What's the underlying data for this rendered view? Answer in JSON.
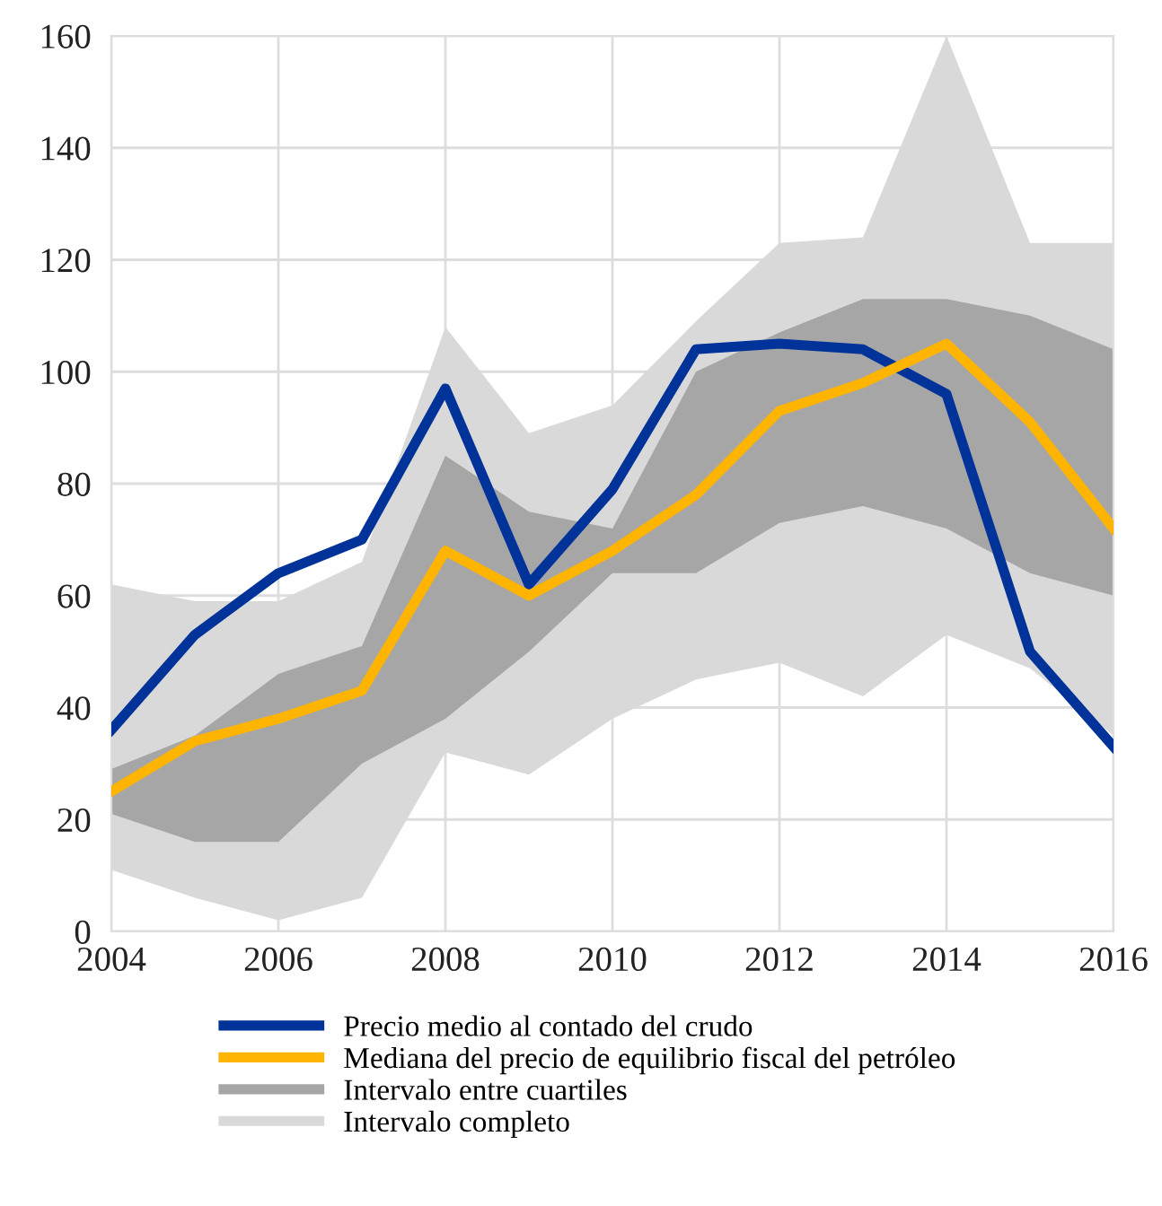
{
  "chart_data": {
    "type": "line",
    "x": [
      2004,
      2005,
      2006,
      2007,
      2008,
      2009,
      2010,
      2011,
      2012,
      2013,
      2014,
      2015,
      2016
    ],
    "series": [
      {
        "name": "Precio medio al contado del crudo",
        "color": "#003399",
        "values": [
          36,
          53,
          64,
          70,
          97,
          62,
          79,
          104,
          105,
          104,
          96,
          50,
          33
        ]
      },
      {
        "name": "Mediana del precio de equilibrio fiscal del petróleo",
        "color": "#ffb400",
        "values": [
          25,
          34,
          38,
          43,
          68,
          60,
          68,
          78,
          93,
          98,
          105,
          91,
          72
        ]
      },
      {
        "name": "Intervalo entre cuartiles",
        "type": "area",
        "color": "#a6a6a6",
        "lower": [
          21,
          16,
          16,
          30,
          38,
          50,
          64,
          64,
          73,
          76,
          72,
          64,
          60
        ],
        "upper": [
          29,
          35,
          46,
          51,
          85,
          75,
          72,
          100,
          107,
          113,
          113,
          110,
          104
        ],
        "values": [
          null,
          null,
          null,
          null,
          null,
          null,
          null,
          null,
          null,
          null,
          null,
          null,
          null
        ]
      },
      {
        "name": "Intervalo completo",
        "type": "area",
        "color": "#d9d9d9",
        "lower": [
          11,
          6,
          2,
          6,
          32,
          28,
          38,
          45,
          48,
          42,
          53,
          47,
          35
        ],
        "upper": [
          62,
          59,
          59,
          66,
          108,
          89,
          94,
          109,
          123,
          124,
          160,
          123,
          123
        ],
        "values": [
          null,
          null,
          null,
          null,
          null,
          null,
          null,
          null,
          null,
          null,
          null,
          null,
          null
        ]
      }
    ],
    "xlim": [
      2004,
      2016
    ],
    "xticks": [
      2004,
      2006,
      2008,
      2010,
      2012,
      2014,
      2016
    ],
    "ylim": [
      0,
      160
    ],
    "yticks": [
      0,
      20,
      40,
      60,
      80,
      100,
      120,
      140,
      160
    ],
    "grid": true,
    "legend": "bottom",
    "marker": "none",
    "line_style": "solid"
  }
}
